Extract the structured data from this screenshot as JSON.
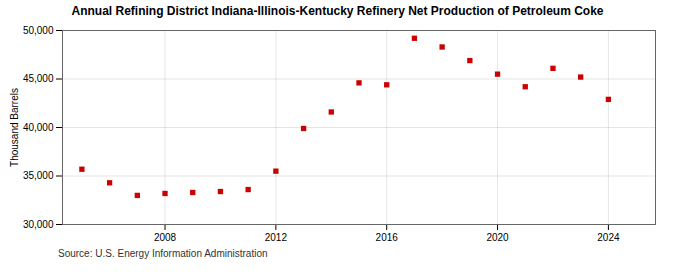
{
  "chart_data": {
    "type": "scatter",
    "title": "Annual Refining District Indiana-Illinois-Kentucky Refinery Net Production of Petroleum Coke",
    "ylabel": "Thousand Barrels",
    "source": "Source: U.S. Energy Information Administration",
    "x": [
      2005,
      2006,
      2007,
      2008,
      2009,
      2010,
      2011,
      2012,
      2013,
      2014,
      2015,
      2016,
      2017,
      2018,
      2019,
      2020,
      2021,
      2022,
      2023,
      2024
    ],
    "values": [
      35700,
      34300,
      33000,
      33200,
      33300,
      33400,
      33600,
      35500,
      39900,
      41600,
      44600,
      44400,
      49200,
      48300,
      46900,
      45500,
      44200,
      46100,
      45200,
      42900
    ],
    "color": "#cc0000",
    "marker": "square",
    "xlim": [
      2004.3,
      2025.7
    ],
    "xticks": [
      2008,
      2012,
      2016,
      2020,
      2024
    ],
    "ylim": [
      30000,
      50000
    ],
    "yticks": [
      {
        "value": 30000,
        "label": "30,000"
      },
      {
        "value": 35000,
        "label": "35,000"
      },
      {
        "value": 40000,
        "label": "40,000"
      },
      {
        "value": 45000,
        "label": "45,000"
      },
      {
        "value": 50000,
        "label": "50,000"
      }
    ],
    "grid": true
  }
}
